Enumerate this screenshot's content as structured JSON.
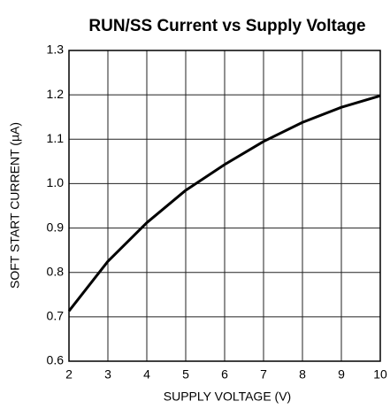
{
  "chart_data": {
    "type": "line",
    "title": "RUN/SS Current vs Supply Voltage",
    "x_label": "SUPPLY VOLTAGE (V)",
    "y_label": "SOFT START CURRENT (µA)",
    "x": [
      2,
      3,
      4,
      5,
      6,
      7,
      8,
      9,
      10
    ],
    "series": [
      {
        "name": "Soft start current",
        "color": "#000000",
        "values": [
          0.713,
          0.825,
          0.912,
          0.985,
          1.043,
          1.095,
          1.138,
          1.172,
          1.198
        ]
      }
    ],
    "xlim": [
      2,
      10
    ],
    "xticks": [
      2,
      3,
      4,
      5,
      6,
      7,
      8,
      9,
      10
    ],
    "ylim": [
      0.6,
      1.3
    ],
    "yticks": [
      0.6,
      0.7,
      0.8,
      0.9,
      {
        "value": 1,
        "label": "1.0"
      },
      1.1,
      1.2,
      1.3
    ],
    "grid": true
  }
}
